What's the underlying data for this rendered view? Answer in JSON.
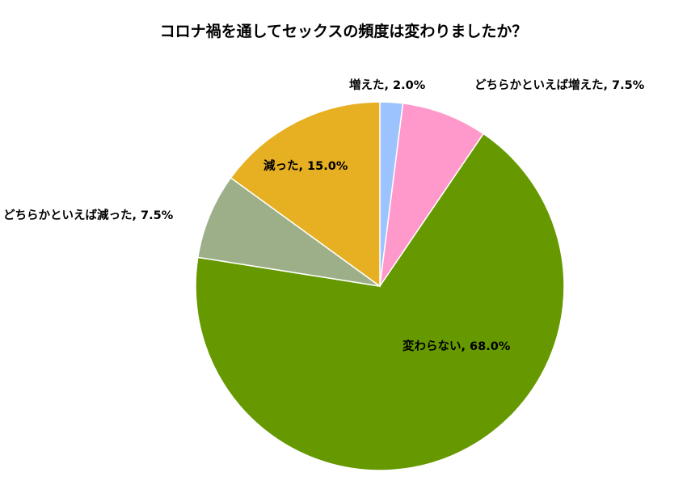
{
  "chart_data": {
    "type": "pie",
    "title": "コロナ禍を通してセックスの頻度は変わりましたか？",
    "start_angle_deg": 0,
    "direction": "clockwise",
    "slices": [
      {
        "label": "増えた, 2.0%",
        "value": 2.0,
        "color": "#9DC3FF"
      },
      {
        "label": "どちらかといえば増えた, 7.5%",
        "value": 7.5,
        "color": "#FF99CC"
      },
      {
        "label": "変わらない, 68.0%",
        "value": 68.0,
        "color": "#669900"
      },
      {
        "label": "どちらかといえば減った, 7.5%",
        "value": 7.5,
        "color": "#9CAF88"
      },
      {
        "label": "減った, 15.0%",
        "value": 15.0,
        "color": "#E6B022"
      }
    ]
  }
}
